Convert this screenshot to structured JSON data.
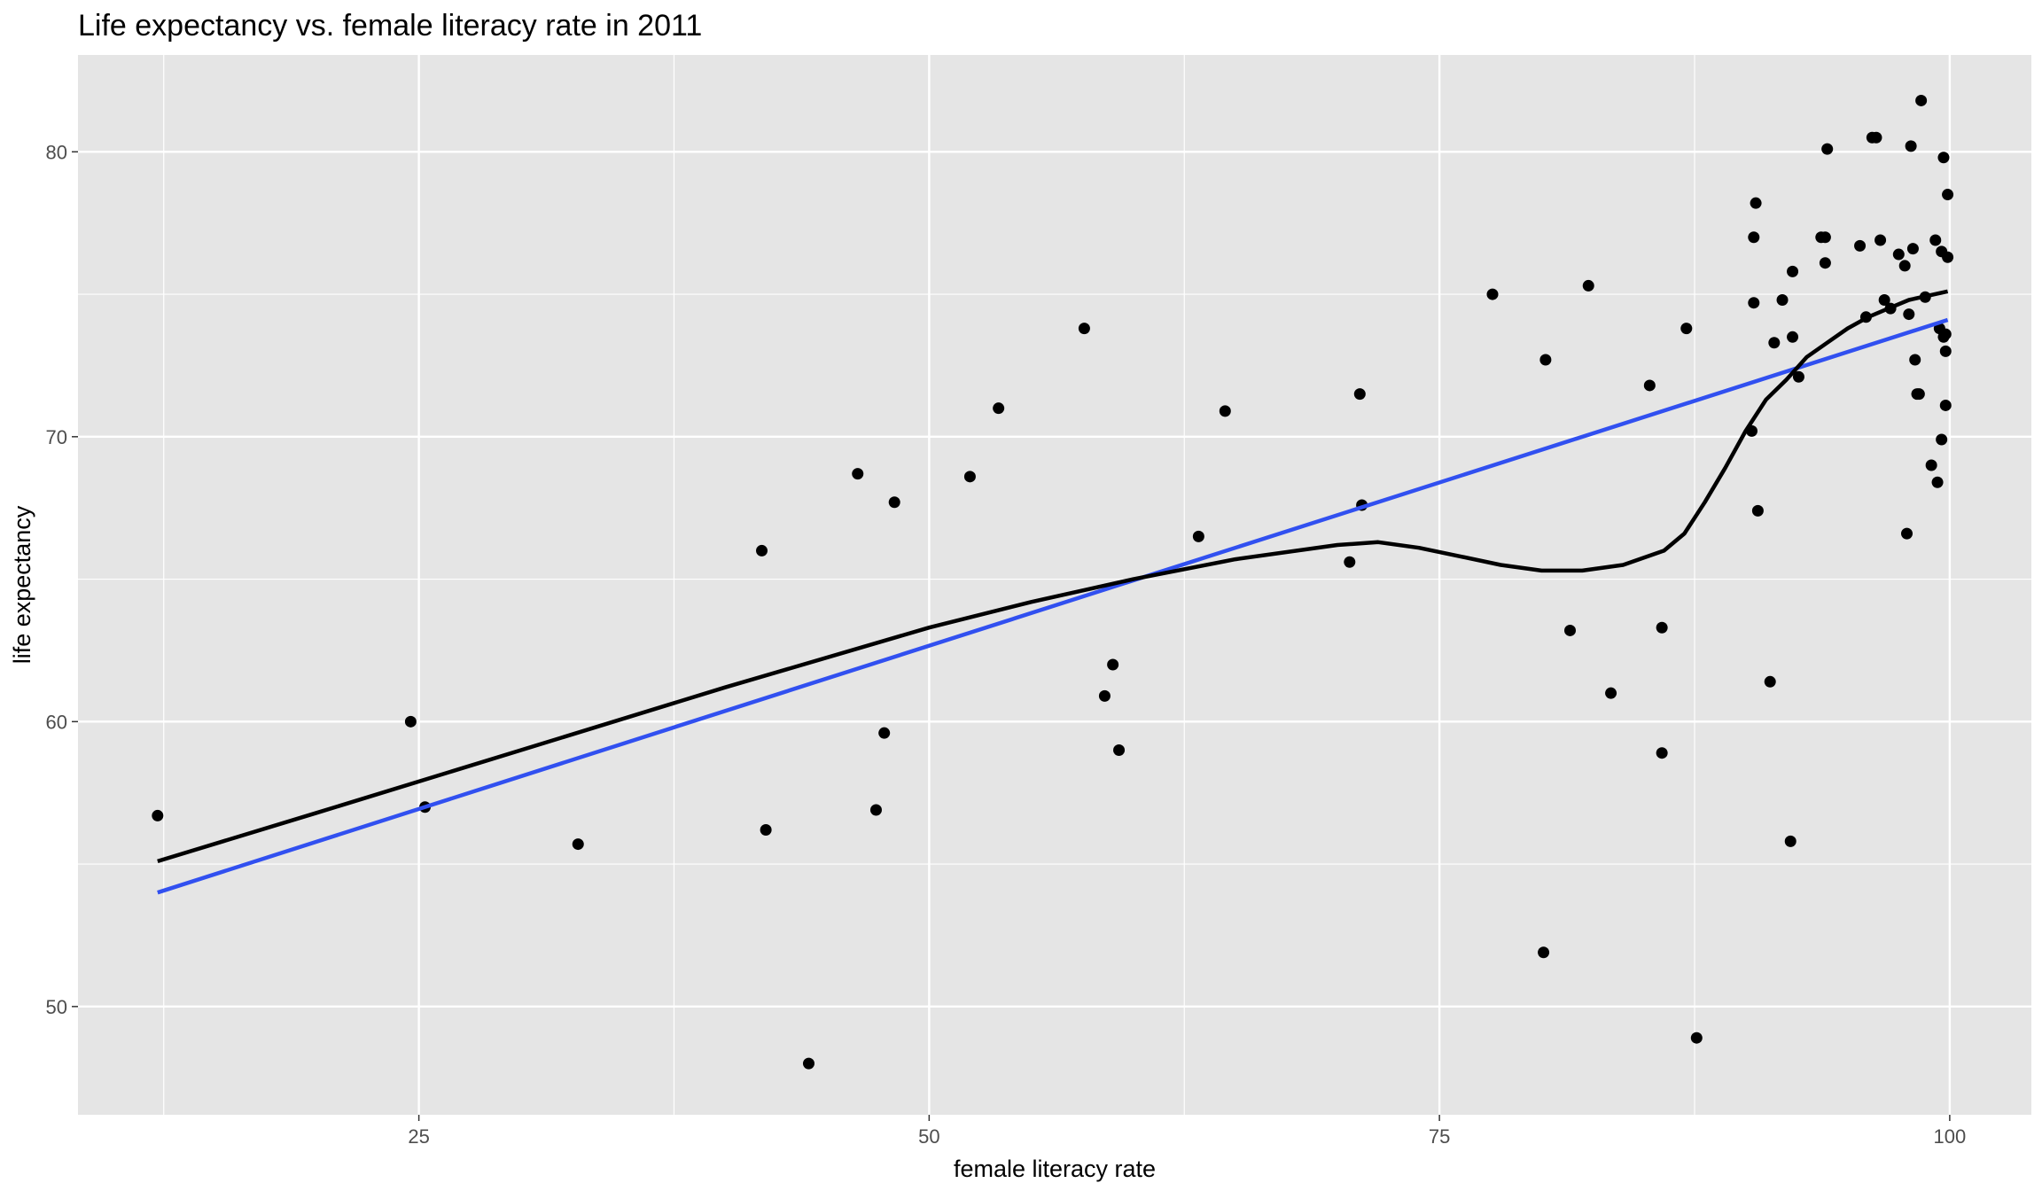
{
  "chart_data": {
    "type": "scatter",
    "title": "Life expectancy vs. female literacy rate in 2011",
    "xlabel": "female literacy rate",
    "ylabel": "life expectancy",
    "xlim": [
      8.3,
      104.0
    ],
    "ylim": [
      46.2,
      83.4
    ],
    "xticks": [
      25,
      50,
      75,
      100
    ],
    "yticks": [
      50,
      60,
      70,
      80
    ],
    "grid": true,
    "legend": "none",
    "colors": {
      "panel": "#e5e5e5",
      "grid": "#ffffff",
      "points": "#000000",
      "loess": "#000000",
      "linear_fit": "#3150f0"
    },
    "points": [
      [
        12.2,
        56.7
      ],
      [
        24.6,
        60.0
      ],
      [
        25.3,
        57.0
      ],
      [
        32.8,
        55.7
      ],
      [
        41.8,
        66.0
      ],
      [
        42.0,
        56.2
      ],
      [
        44.1,
        48.0
      ],
      [
        46.5,
        68.7
      ],
      [
        47.4,
        56.9
      ],
      [
        47.8,
        59.6
      ],
      [
        48.3,
        67.7
      ],
      [
        52.0,
        68.6
      ],
      [
        53.4,
        71.0
      ],
      [
        57.6,
        73.8
      ],
      [
        58.6,
        60.9
      ],
      [
        59.0,
        62.0
      ],
      [
        59.3,
        59.0
      ],
      [
        63.2,
        66.5
      ],
      [
        64.5,
        70.9
      ],
      [
        70.6,
        65.6
      ],
      [
        71.1,
        71.5
      ],
      [
        71.2,
        67.6
      ],
      [
        77.6,
        75.0
      ],
      [
        80.1,
        51.9
      ],
      [
        80.2,
        72.7
      ],
      [
        81.4,
        63.2
      ],
      [
        82.3,
        75.3
      ],
      [
        83.4,
        61.0
      ],
      [
        85.3,
        71.8
      ],
      [
        85.9,
        58.9
      ],
      [
        85.9,
        63.3
      ],
      [
        87.1,
        73.8
      ],
      [
        87.6,
        48.9
      ],
      [
        90.3,
        70.2
      ],
      [
        90.4,
        74.7
      ],
      [
        90.4,
        77.0
      ],
      [
        90.5,
        78.2
      ],
      [
        90.6,
        67.4
      ],
      [
        91.2,
        61.4
      ],
      [
        91.4,
        73.3
      ],
      [
        91.8,
        74.8
      ],
      [
        92.2,
        55.8
      ],
      [
        92.3,
        73.5
      ],
      [
        92.3,
        75.8
      ],
      [
        92.6,
        72.1
      ],
      [
        93.7,
        77.0
      ],
      [
        93.9,
        76.1
      ],
      [
        93.9,
        77.0
      ],
      [
        94.0,
        80.1
      ],
      [
        95.6,
        76.7
      ],
      [
        95.9,
        74.2
      ],
      [
        96.2,
        80.5
      ],
      [
        96.4,
        80.5
      ],
      [
        96.6,
        76.9
      ],
      [
        96.8,
        74.8
      ],
      [
        97.1,
        74.5
      ],
      [
        97.5,
        76.4
      ],
      [
        97.8,
        76.0
      ],
      [
        97.9,
        66.6
      ],
      [
        98.0,
        74.3
      ],
      [
        98.1,
        80.2
      ],
      [
        98.2,
        76.6
      ],
      [
        98.3,
        72.7
      ],
      [
        98.4,
        71.5
      ],
      [
        98.5,
        71.5
      ],
      [
        98.6,
        81.8
      ],
      [
        98.8,
        74.9
      ],
      [
        99.1,
        69.0
      ],
      [
        99.3,
        76.9
      ],
      [
        99.4,
        68.4
      ],
      [
        99.5,
        73.8
      ],
      [
        99.6,
        69.9
      ],
      [
        99.6,
        76.5
      ],
      [
        99.7,
        73.5
      ],
      [
        99.7,
        79.8
      ],
      [
        99.8,
        73.0
      ],
      [
        99.8,
        71.1
      ],
      [
        99.8,
        73.6
      ],
      [
        99.9,
        76.3
      ],
      [
        99.9,
        78.5
      ]
    ],
    "linear_fit": [
      [
        12.2,
        54.0
      ],
      [
        99.9,
        74.1
      ]
    ],
    "loess_fit": [
      [
        12.2,
        55.1
      ],
      [
        20,
        56.8
      ],
      [
        30,
        59.0
      ],
      [
        40,
        61.2
      ],
      [
        50,
        63.3
      ],
      [
        55,
        64.2
      ],
      [
        60,
        65.0
      ],
      [
        65,
        65.7
      ],
      [
        70,
        66.2
      ],
      [
        72,
        66.3
      ],
      [
        74,
        66.1
      ],
      [
        76,
        65.8
      ],
      [
        78,
        65.5
      ],
      [
        80,
        65.3
      ],
      [
        82,
        65.3
      ],
      [
        84,
        65.5
      ],
      [
        86,
        66.0
      ],
      [
        87,
        66.6
      ],
      [
        88,
        67.7
      ],
      [
        89,
        68.9
      ],
      [
        90,
        70.2
      ],
      [
        91,
        71.3
      ],
      [
        92,
        72.0
      ],
      [
        93,
        72.8
      ],
      [
        94,
        73.3
      ],
      [
        95,
        73.8
      ],
      [
        96,
        74.2
      ],
      [
        97,
        74.5
      ],
      [
        98,
        74.8
      ],
      [
        99.9,
        75.1
      ]
    ]
  }
}
